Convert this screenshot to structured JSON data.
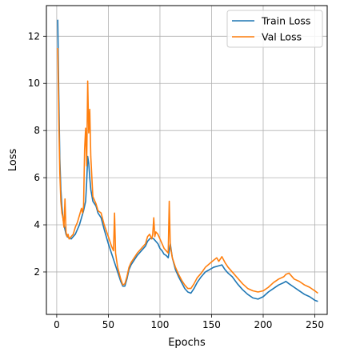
{
  "chart_data": {
    "type": "line",
    "xlabel": "Epochs",
    "ylabel": "Loss",
    "xlim": [
      -10,
      262
    ],
    "ylim": [
      0.2,
      13.3
    ],
    "xticks": [
      0,
      50,
      100,
      150,
      200,
      250
    ],
    "yticks": [
      2,
      4,
      6,
      8,
      10,
      12
    ],
    "grid": true,
    "legend_position": "top-right",
    "series": [
      {
        "name": "Train Loss",
        "color": "#1f77b4",
        "x": [
          1,
          2,
          3,
          4,
          5,
          6,
          7,
          8,
          9,
          10,
          12,
          14,
          16,
          18,
          20,
          22,
          24,
          26,
          28,
          29,
          30,
          31,
          32,
          33,
          35,
          38,
          40,
          43,
          46,
          50,
          53,
          56,
          59,
          62,
          64,
          66,
          68,
          70,
          72,
          75,
          78,
          82,
          86,
          88,
          90,
          92,
          94,
          96,
          98,
          100,
          102,
          104,
          106,
          108,
          110,
          112,
          115,
          118,
          121,
          124,
          127,
          130,
          133,
          136,
          140,
          144,
          148,
          152,
          156,
          160,
          163,
          166,
          170,
          175,
          180,
          185,
          190,
          195,
          200,
          205,
          210,
          215,
          220,
          222,
          225,
          230,
          235,
          240,
          245,
          250,
          253
        ],
        "y": [
          12.7,
          9.5,
          6.8,
          5.5,
          4.8,
          4.3,
          4.0,
          3.8,
          3.6,
          3.5,
          3.45,
          3.4,
          3.5,
          3.6,
          3.8,
          4.0,
          4.3,
          4.6,
          5.0,
          5.8,
          6.9,
          6.6,
          6.0,
          5.5,
          5.0,
          4.8,
          4.5,
          4.3,
          3.8,
          3.2,
          2.8,
          2.4,
          2.0,
          1.6,
          1.4,
          1.4,
          1.7,
          2.1,
          2.3,
          2.5,
          2.7,
          2.9,
          3.1,
          3.3,
          3.4,
          3.45,
          3.4,
          3.3,
          3.2,
          3.0,
          2.9,
          2.75,
          2.7,
          2.6,
          3.2,
          2.6,
          2.1,
          1.8,
          1.55,
          1.3,
          1.15,
          1.1,
          1.3,
          1.55,
          1.8,
          2.0,
          2.1,
          2.2,
          2.25,
          2.3,
          2.1,
          1.95,
          1.8,
          1.5,
          1.25,
          1.05,
          0.9,
          0.85,
          0.95,
          1.15,
          1.3,
          1.45,
          1.55,
          1.6,
          1.5,
          1.35,
          1.2,
          1.05,
          0.95,
          0.8,
          0.75
        ]
      },
      {
        "name": "Val Loss",
        "color": "#ff7f0e",
        "x": [
          1,
          2,
          3,
          4,
          5,
          6,
          7,
          8,
          9,
          10,
          11,
          12,
          14,
          16,
          18,
          20,
          22,
          24,
          25,
          26,
          27,
          28,
          29,
          30,
          31,
          32,
          33,
          35,
          38,
          40,
          43,
          46,
          50,
          53,
          55,
          56,
          57,
          59,
          62,
          64,
          66,
          68,
          70,
          72,
          75,
          78,
          82,
          86,
          88,
          90,
          92,
          93,
          94,
          95,
          96,
          98,
          100,
          102,
          104,
          106,
          108,
          109,
          110,
          112,
          115,
          118,
          121,
          124,
          127,
          130,
          133,
          136,
          140,
          144,
          148,
          152,
          155,
          157,
          160,
          163,
          166,
          170,
          175,
          180,
          185,
          190,
          195,
          200,
          205,
          210,
          215,
          220,
          222,
          225,
          230,
          235,
          240,
          245,
          250,
          253
        ],
        "y": [
          11.5,
          8.5,
          6.2,
          5.0,
          4.5,
          4.3,
          3.9,
          5.1,
          3.7,
          3.5,
          3.6,
          3.4,
          3.5,
          3.6,
          3.9,
          4.1,
          4.4,
          4.7,
          4.5,
          4.8,
          7.2,
          8.1,
          6.5,
          10.1,
          7.9,
          8.9,
          6.9,
          5.2,
          4.9,
          4.6,
          4.5,
          4.0,
          3.5,
          3.1,
          2.9,
          4.5,
          2.8,
          2.2,
          1.7,
          1.45,
          1.5,
          1.8,
          2.2,
          2.4,
          2.6,
          2.8,
          3.0,
          3.2,
          3.5,
          3.6,
          3.4,
          3.6,
          4.3,
          3.5,
          3.7,
          3.6,
          3.4,
          3.2,
          3.0,
          2.9,
          2.8,
          5.0,
          3.1,
          2.6,
          2.2,
          1.9,
          1.65,
          1.45,
          1.3,
          1.3,
          1.5,
          1.75,
          1.95,
          2.2,
          2.35,
          2.5,
          2.6,
          2.45,
          2.65,
          2.4,
          2.2,
          2.0,
          1.75,
          1.5,
          1.3,
          1.2,
          1.15,
          1.2,
          1.35,
          1.55,
          1.7,
          1.8,
          1.9,
          1.95,
          1.7,
          1.6,
          1.45,
          1.35,
          1.2,
          1.1
        ]
      }
    ]
  }
}
